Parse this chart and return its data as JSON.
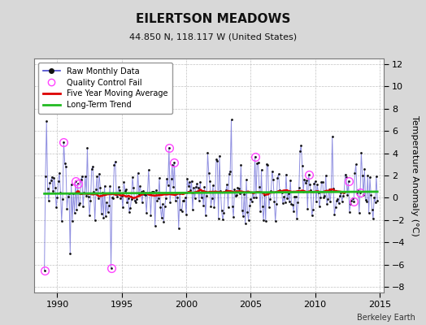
{
  "title": "EILERTSON MEADOWS",
  "subtitle": "44.850 N, 118.117 W (United States)",
  "ylabel": "Temperature Anomaly (°C)",
  "credit": "Berkeley Earth",
  "xlim": [
    1988.2,
    2015.3
  ],
  "ylim": [
    -8.5,
    12.5
  ],
  "yticks": [
    -8,
    -6,
    -4,
    -2,
    0,
    2,
    4,
    6,
    8,
    10,
    12
  ],
  "xticks": [
    1990,
    1995,
    2000,
    2005,
    2010,
    2015
  ],
  "background_color": "#d8d8d8",
  "plot_bg_color": "#ffffff",
  "raw_color": "#4444cc",
  "raw_alpha": 0.6,
  "dot_color": "#111111",
  "qc_color": "#ff44ff",
  "moving_avg_color": "#dd0000",
  "trend_color": "#22bb22",
  "seed": 137
}
